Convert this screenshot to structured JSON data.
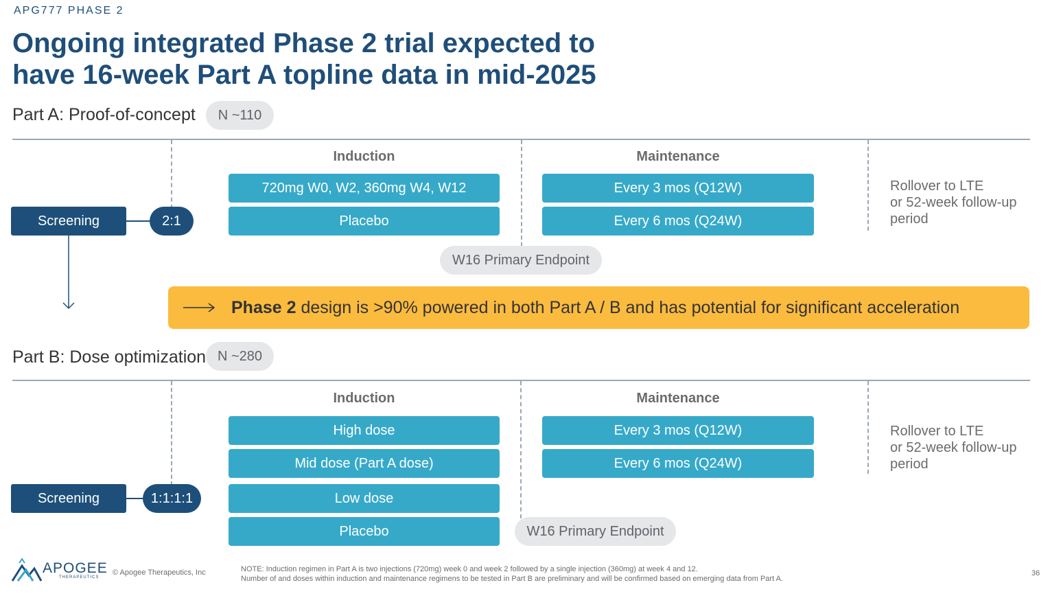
{
  "kicker": "APG777 PHASE 2",
  "title": {
    "line1": "Ongoing integrated Phase 2 trial expected to",
    "line2": "have 16-week Part A topline data in mid-2025"
  },
  "part_a": {
    "label": "Part A: Proof-of-concept",
    "n": "N ~110",
    "screening": "Screening",
    "ratio": "2:1",
    "induction_header": "Induction",
    "maintenance_header": "Maintenance",
    "induction_arms": [
      "720mg W0, W2, 360mg W4, W12",
      "Placebo"
    ],
    "maintenance_arms": [
      "Every 3 mos (Q12W)",
      "Every 6 mos (Q24W)"
    ],
    "endpoint": "W16 Primary Endpoint",
    "rollover": [
      "Rollover to LTE",
      "or 52-week follow-up",
      "period"
    ]
  },
  "banner": {
    "bold": "Phase 2",
    "text": " design is >90% powered in both Part A / B and has potential for significant acceleration"
  },
  "part_b": {
    "label": "Part B: Dose optimization",
    "n": "N ~280",
    "screening": "Screening",
    "ratio": "1:1:1:1",
    "induction_header": "Induction",
    "maintenance_header": "Maintenance",
    "induction_arms": [
      "High dose",
      "Mid dose (Part A dose)",
      "Low dose",
      "Placebo"
    ],
    "maintenance_arms": [
      "Every 3 mos (Q12W)",
      "Every 6 mos (Q24W)"
    ],
    "endpoint": "W16 Primary Endpoint",
    "rollover": [
      "Rollover to LTE",
      "or 52-week follow-up",
      "period"
    ]
  },
  "footer": {
    "logo_text": "APOGEE",
    "logo_sub": "THERAPEUTICS",
    "copyright": "© Apogee Therapeutics, Inc",
    "note1": "NOTE: Induction regimen in Part A is two injections (720mg) week 0 and week 2 followed by a single injection (360mg) at week 4 and 12.",
    "note2": "Number of and doses within induction and maintenance regimens to be tested in Part B are preliminary and will be confirmed based on emerging data from Part A.",
    "page_number": "36"
  },
  "colors": {
    "navy": "#1d4f7a",
    "title_blue": "#1f4e79",
    "arm_teal": "#36a9c9",
    "banner_yellow": "#fbbb3f",
    "pill_gray": "#e6e7e9"
  }
}
